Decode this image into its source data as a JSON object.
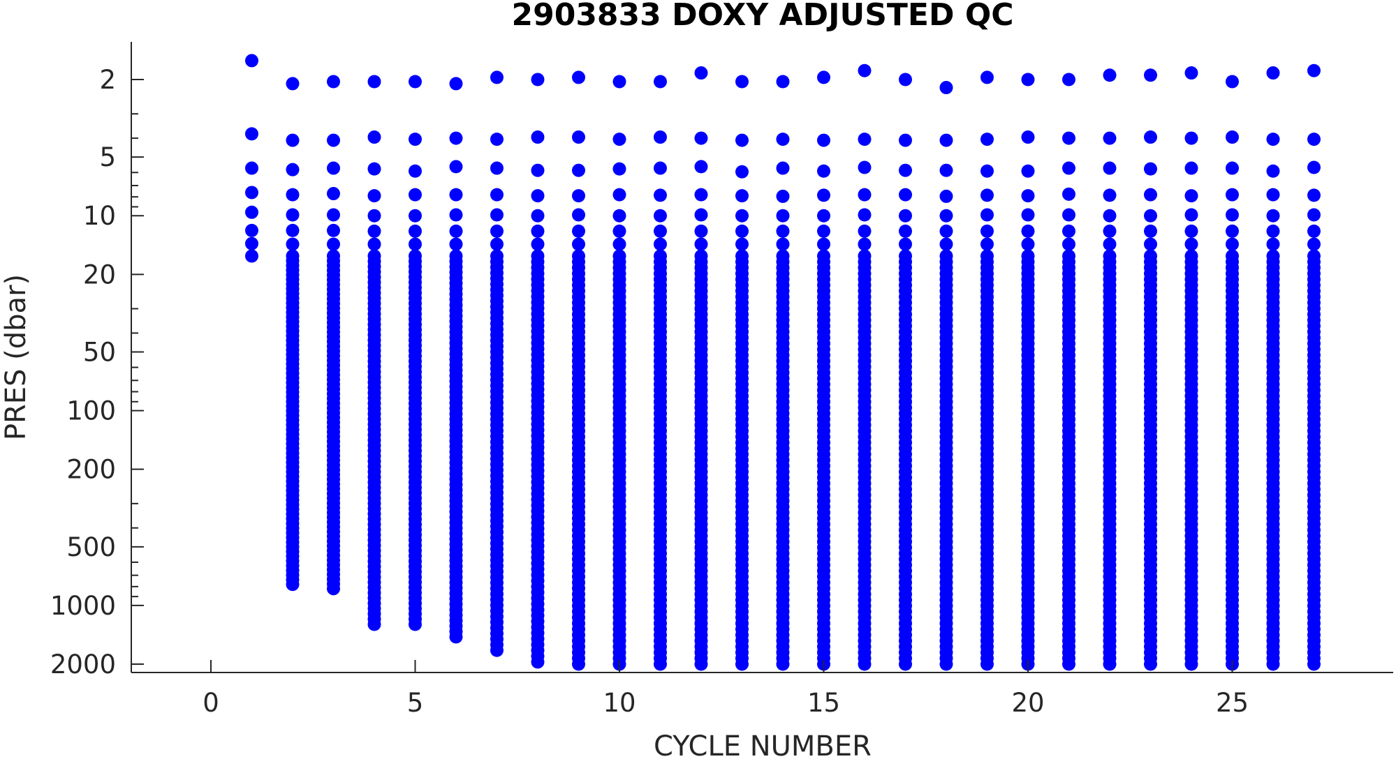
{
  "chart_data": {
    "type": "scatter",
    "title": "2903833  DOXY ADJUSTED QC",
    "xlabel": "CYCLE NUMBER",
    "ylabel": "PRES (dbar)",
    "xlim": [
      -2,
      29
    ],
    "ylim": [
      1.3,
      2200
    ],
    "y_scale": "log",
    "y_reversed": true,
    "x_ticks": [
      0,
      5,
      10,
      15,
      20,
      25
    ],
    "y_ticks": [
      2,
      5,
      10,
      20,
      50,
      100,
      200,
      500,
      1000,
      2000
    ],
    "grid": false,
    "legend": "none",
    "marker_color": "#0000ff",
    "series": [
      {
        "cycles": [
          1
        ],
        "shallow_pres": [
          1.6,
          3.8,
          5.7,
          7.6,
          9.6,
          11.9,
          13.9,
          16.1
        ],
        "min_pres": 1.6,
        "max_pres": 16.1
      },
      {
        "cycles": [
          2
        ],
        "shallow_pres": [
          2.1,
          4.1,
          5.8,
          7.8,
          9.9,
          11.9,
          14.0
        ],
        "min_pres": 2.1,
        "max_pres": 780
      },
      {
        "cycles": [
          3
        ],
        "shallow_pres": [
          2.05,
          4.1,
          5.7,
          7.7,
          9.9,
          11.9,
          14.0
        ],
        "min_pres": 2.05,
        "max_pres": 820
      },
      {
        "cycles": [
          4
        ],
        "shallow_pres": [
          2.05,
          3.95,
          5.75,
          7.9,
          10.0,
          12.0,
          14.0
        ],
        "min_pres": 2.05,
        "max_pres": 1250
      },
      {
        "cycles": [
          5
        ],
        "shallow_pres": [
          2.05,
          4.05,
          5.9,
          7.8,
          10.0,
          12.0,
          14.0
        ],
        "min_pres": 2.05,
        "max_pres": 1250
      },
      {
        "cycles": [
          6
        ],
        "shallow_pres": [
          2.1,
          4.0,
          5.6,
          7.8,
          9.9,
          12.0,
          14.0
        ],
        "min_pres": 2.1,
        "max_pres": 1450
      },
      {
        "cycles": [
          7
        ],
        "shallow_pres": [
          1.95,
          4.05,
          5.7,
          7.8,
          9.9,
          12.0,
          14.0
        ],
        "min_pres": 1.95,
        "max_pres": 1700
      },
      {
        "cycles": [
          8
        ],
        "shallow_pres": [
          2.0,
          3.95,
          5.85,
          7.9,
          10.0,
          12.0,
          14.0
        ],
        "min_pres": 2.0,
        "max_pres": 1950
      },
      {
        "cycles": [
          9
        ],
        "shallow_pres": [
          1.95,
          3.95,
          5.85,
          7.9,
          9.9,
          12.0,
          14.0
        ],
        "min_pres": 1.95,
        "max_pres": 2000
      },
      {
        "cycles": [
          10
        ],
        "shallow_pres": [
          2.05,
          4.05,
          5.75,
          7.8,
          10.0,
          12.0,
          14.0
        ],
        "min_pres": 2.05,
        "max_pres": 2000
      },
      {
        "cycles": [
          11
        ],
        "shallow_pres": [
          2.05,
          3.95,
          5.7,
          7.85,
          10.0,
          12.0,
          14.0
        ],
        "min_pres": 2.05,
        "max_pres": 2000
      },
      {
        "cycles": [
          12
        ],
        "shallow_pres": [
          1.85,
          4.0,
          5.6,
          7.8,
          9.9,
          12.0,
          14.0
        ],
        "min_pres": 1.85,
        "max_pres": 2000
      },
      {
        "cycles": [
          13
        ],
        "shallow_pres": [
          2.05,
          4.1,
          5.95,
          7.9,
          10.0,
          12.0,
          14.0
        ],
        "min_pres": 2.05,
        "max_pres": 2000
      },
      {
        "cycles": [
          14
        ],
        "shallow_pres": [
          2.05,
          4.05,
          5.7,
          7.95,
          10.0,
          12.0,
          14.0
        ],
        "min_pres": 2.05,
        "max_pres": 2000
      },
      {
        "cycles": [
          15
        ],
        "shallow_pres": [
          1.95,
          4.1,
          5.9,
          7.85,
          10.0,
          12.0,
          14.0
        ],
        "min_pres": 1.95,
        "max_pres": 2000
      },
      {
        "cycles": [
          16
        ],
        "shallow_pres": [
          1.8,
          4.05,
          5.65,
          7.8,
          9.9,
          12.0,
          14.0
        ],
        "min_pres": 1.8,
        "max_pres": 2000
      },
      {
        "cycles": [
          17
        ],
        "shallow_pres": [
          2.0,
          4.1,
          5.85,
          7.8,
          10.0,
          12.0,
          14.0
        ],
        "min_pres": 2.0,
        "max_pres": 2000
      },
      {
        "cycles": [
          18
        ],
        "shallow_pres": [
          2.2,
          4.1,
          5.85,
          7.95,
          10.0,
          12.0,
          14.0
        ],
        "min_pres": 2.2,
        "max_pres": 2000
      },
      {
        "cycles": [
          19
        ],
        "shallow_pres": [
          1.95,
          4.05,
          5.9,
          7.85,
          9.9,
          12.0,
          14.0
        ],
        "min_pres": 1.95,
        "max_pres": 2000
      },
      {
        "cycles": [
          20
        ],
        "shallow_pres": [
          2.0,
          3.95,
          5.9,
          7.9,
          9.9,
          12.0,
          14.0
        ],
        "min_pres": 2.0,
        "max_pres": 2000
      },
      {
        "cycles": [
          21
        ],
        "shallow_pres": [
          2.0,
          4.0,
          5.7,
          7.75,
          9.9,
          12.0,
          14.0
        ],
        "min_pres": 2.0,
        "max_pres": 2000
      },
      {
        "cycles": [
          22
        ],
        "shallow_pres": [
          1.9,
          4.0,
          5.7,
          7.85,
          10.0,
          12.0,
          14.0
        ],
        "min_pres": 1.9,
        "max_pres": 2000
      },
      {
        "cycles": [
          23
        ],
        "shallow_pres": [
          1.9,
          3.95,
          5.75,
          7.8,
          10.0,
          12.0,
          14.0
        ],
        "min_pres": 1.9,
        "max_pres": 2000
      },
      {
        "cycles": [
          24
        ],
        "shallow_pres": [
          1.85,
          4.0,
          5.7,
          7.9,
          9.9,
          12.0,
          14.0
        ],
        "min_pres": 1.85,
        "max_pres": 2000
      },
      {
        "cycles": [
          25
        ],
        "shallow_pres": [
          2.05,
          3.95,
          5.7,
          7.8,
          9.9,
          12.0,
          14.0
        ],
        "min_pres": 2.05,
        "max_pres": 2000
      },
      {
        "cycles": [
          26
        ],
        "shallow_pres": [
          1.85,
          4.05,
          5.9,
          7.8,
          10.0,
          12.0,
          14.0
        ],
        "min_pres": 1.85,
        "max_pres": 2000
      },
      {
        "cycles": [
          27
        ],
        "shallow_pres": [
          1.8,
          4.05,
          5.65,
          7.85,
          9.9,
          12.0,
          14.0
        ],
        "min_pres": 1.8,
        "max_pres": 2000
      }
    ]
  }
}
